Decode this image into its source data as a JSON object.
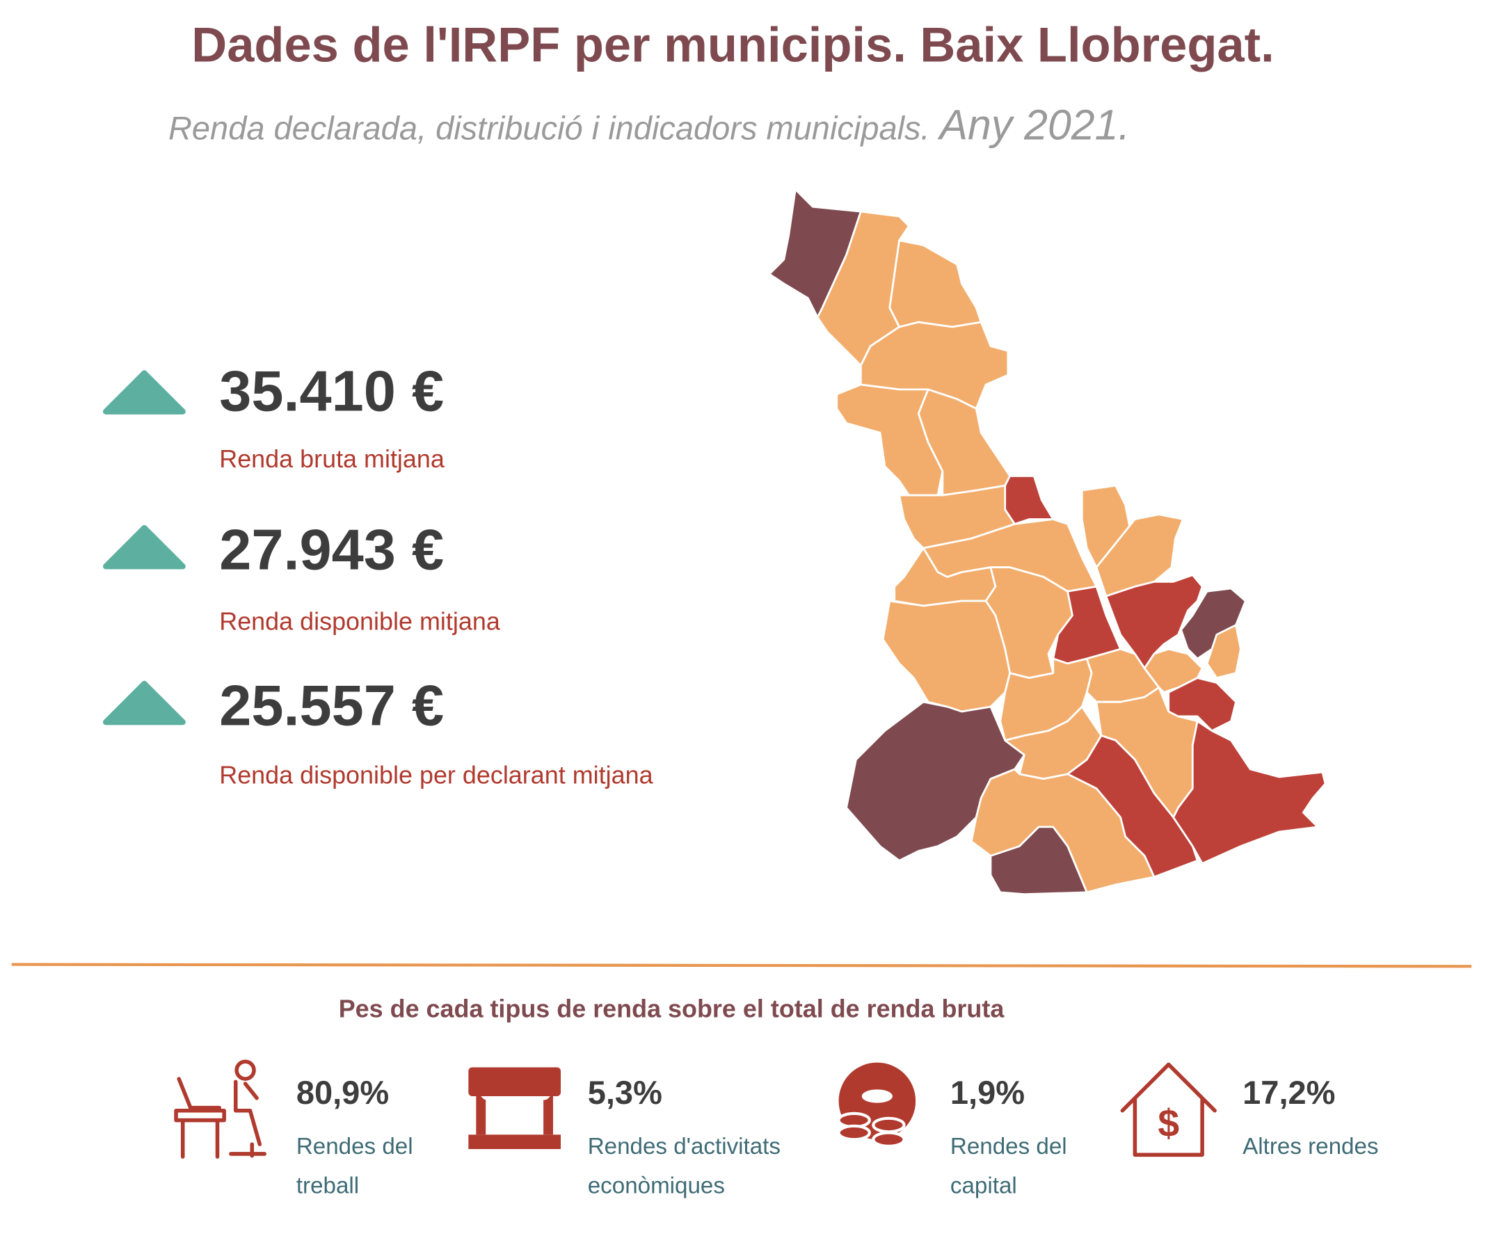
{
  "header": {
    "title": "Dades de l'IRPF per municipis. Baix Llobregat.",
    "subtitle": "Renda declarada, distribució i indicadors municipals.",
    "year": "Any 2021."
  },
  "indicators": [
    {
      "value": "35.410 €",
      "label": "Renda bruta mitjana"
    },
    {
      "value": "27.943 €",
      "label": "Renda disponible mitjana"
    },
    {
      "value": "25.557 €",
      "label": "Renda disponible per declarant mitjana"
    }
  ],
  "section": {
    "title": "Pes de cada tipus de renda sobre el total de renda bruta",
    "items": [
      {
        "value": "80,9%",
        "label_lines": [
          "Rendes del",
          "treball"
        ]
      },
      {
        "value": "5,3%",
        "label_lines": [
          "Rendes d'activitats",
          "econòmiques"
        ]
      },
      {
        "value": "1,9%",
        "label_lines": [
          "Rendes del",
          "capital"
        ]
      },
      {
        "value": "17,2%",
        "label_lines": [
          "Altres rendes"
        ]
      }
    ]
  }
}
